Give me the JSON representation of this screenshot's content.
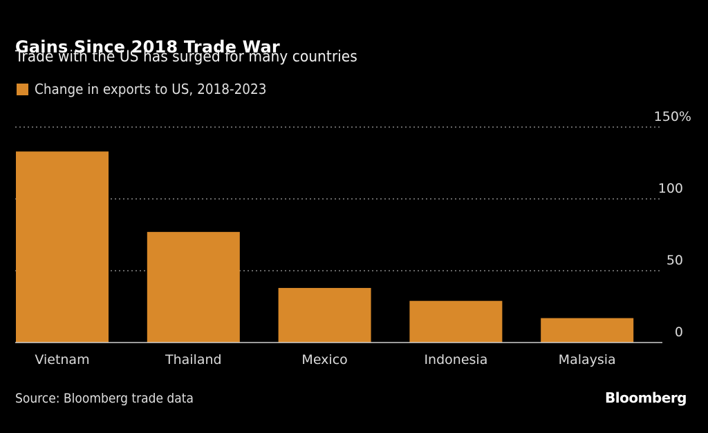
{
  "header": {
    "title": "Gains Since 2018 Trade War",
    "subtitle": "Trade with the US has surged for many countries"
  },
  "footer": {
    "source": "Source: Bloomberg trade data",
    "brand": "Bloomberg"
  },
  "colors": {
    "bar": "#d9892a",
    "background": "#000000",
    "gridline": "#8a8a8a",
    "baseline": "#cfcfcf"
  },
  "chart_data": {
    "type": "bar",
    "title": "Gains Since 2018 Trade War",
    "subtitle": "Trade with the US has surged for many countries",
    "categories": [
      "Vietnam",
      "Thailand",
      "Mexico",
      "Indonesia",
      "Malaysia"
    ],
    "series": [
      {
        "name": "Change in exports to US, 2018-2023",
        "values": [
          133,
          77,
          38,
          29,
          17
        ]
      }
    ],
    "xlabel": "",
    "ylabel": "",
    "ylim": [
      0,
      150
    ],
    "yticks": [
      0,
      50,
      100,
      150
    ],
    "ytick_labels": [
      "0",
      "50",
      "100",
      "150%"
    ],
    "y_axis_position": "right",
    "grid": true,
    "legend": "top-left",
    "source": "Source: Bloomberg trade data"
  }
}
